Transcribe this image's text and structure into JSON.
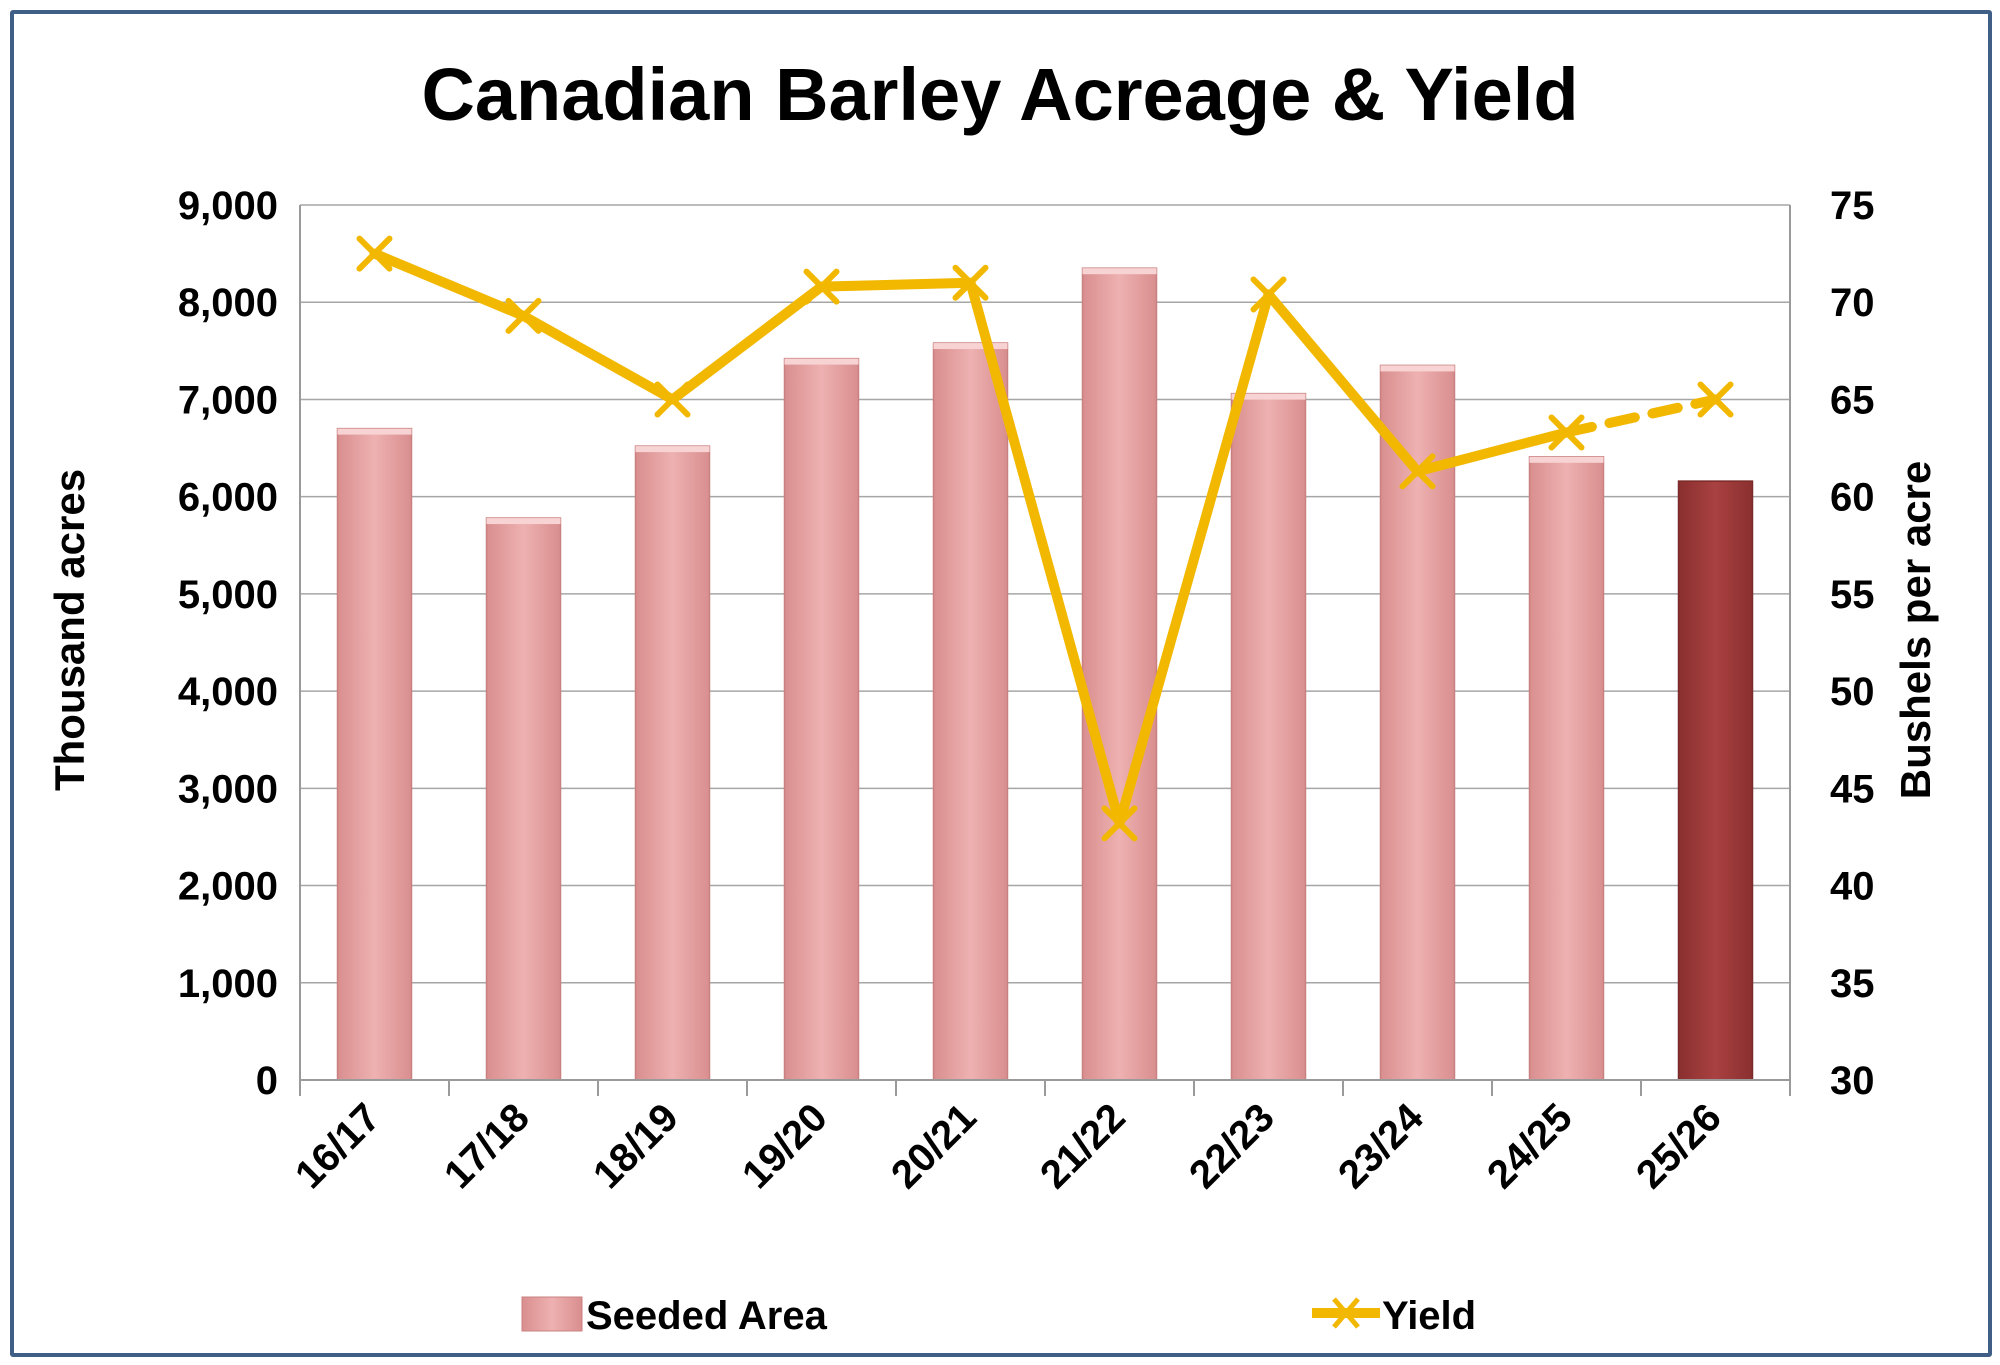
{
  "chart_data": {
    "type": "bar",
    "title": "Canadian Barley Acreage & Yield",
    "categories": [
      "16/17",
      "17/18",
      "18/19",
      "19/20",
      "20/21",
      "21/22",
      "22/23",
      "23/24",
      "24/25",
      "25/26"
    ],
    "series": [
      {
        "name": "Seeded Area",
        "type": "bar",
        "axis": "left",
        "values": [
          6700,
          5780,
          6520,
          7420,
          7580,
          8350,
          7060,
          7350,
          6410,
          6160
        ],
        "color": "#e6a3a3",
        "highlight_color": "#9e3a3a",
        "highlight_index": 9
      },
      {
        "name": "Yield",
        "type": "line",
        "axis": "right",
        "values": [
          72.5,
          69.3,
          65.0,
          70.8,
          71.0,
          43.2,
          70.4,
          61.3,
          63.3,
          65.0
        ],
        "color": "#f2b800",
        "dashed_from_index": 8
      }
    ],
    "ylabel": "Thousand acres",
    "y2label": "Bushels per acre",
    "ylim": [
      0,
      9000
    ],
    "y2lim": [
      30,
      75
    ],
    "yticks": [
      "0",
      "1,000",
      "2,000",
      "3,000",
      "4,000",
      "5,000",
      "6,000",
      "7,000",
      "8,000",
      "9,000"
    ],
    "y2ticks": [
      "30",
      "35",
      "40",
      "45",
      "50",
      "55",
      "60",
      "65",
      "70",
      "75"
    ],
    "grid": true,
    "legend_position": "bottom"
  }
}
